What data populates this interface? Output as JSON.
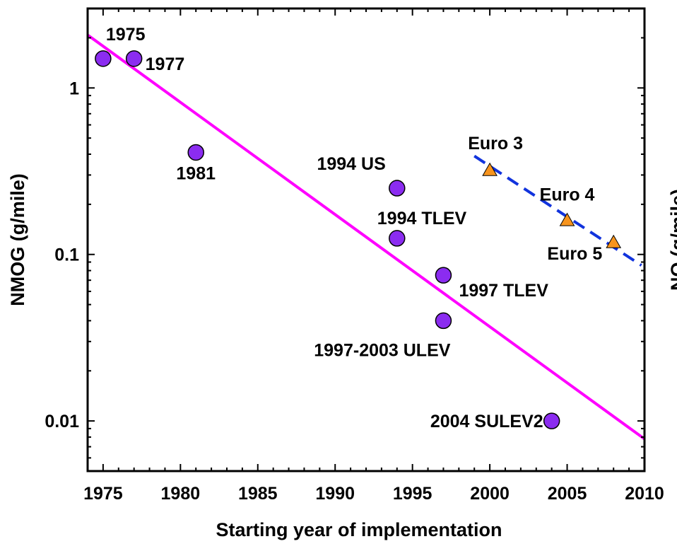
{
  "chart_data": {
    "type": "scatter",
    "xlabel": "Starting year of implementation",
    "ylabel": "NMOG (g/mile)",
    "right_ylabel_fragment": "NO (g/mile)",
    "xlim": [
      1974,
      2010
    ],
    "ylim": [
      0.005,
      3.0
    ],
    "y_scale": "log",
    "x_ticks": [
      1975,
      1980,
      1985,
      1990,
      1995,
      2000,
      2005,
      2010
    ],
    "y_ticks": [
      {
        "value": 0.01,
        "label": "0.01"
      },
      {
        "value": 0.1,
        "label": "0.1"
      },
      {
        "value": 1,
        "label": "1"
      }
    ],
    "grid": false,
    "colors": {
      "us_points": "#8b2cf0",
      "eu_points": "#f7941d",
      "us_trend": "#ff00ff",
      "eu_trend": "#1133dd"
    },
    "series": [
      {
        "marker": "circle",
        "points": [
          {
            "x": 1975,
            "y": 1.5,
            "label": "1975"
          },
          {
            "x": 1977,
            "y": 1.5,
            "label": "1977"
          },
          {
            "x": 1981,
            "y": 0.41,
            "label": "1981"
          },
          {
            "x": 1994,
            "y": 0.25,
            "label": "1994 US"
          },
          {
            "x": 1994,
            "y": 0.125,
            "label": "1994 TLEV"
          },
          {
            "x": 1997,
            "y": 0.075,
            "label": "1997 TLEV"
          },
          {
            "x": 1997,
            "y": 0.04,
            "label": "1997-2003 ULEV"
          },
          {
            "x": 2004,
            "y": 0.01,
            "label": "2004 SULEV2"
          }
        ]
      },
      {
        "marker": "triangle",
        "points": [
          {
            "x": 2000,
            "y": 0.32,
            "label": "Euro 3"
          },
          {
            "x": 2005,
            "y": 0.16,
            "label": "Euro 4"
          },
          {
            "x": 2008,
            "y": 0.118,
            "label": "Euro 5"
          }
        ]
      }
    ],
    "trendlines": [
      {
        "style": "solid",
        "from": {
          "x": 1974,
          "y": 2.08
        },
        "to": {
          "x": 2010,
          "y": 0.0078
        }
      },
      {
        "style": "dashed",
        "from": {
          "x": 1999,
          "y": 0.39
        },
        "to": {
          "x": 2009.8,
          "y": 0.086
        }
      }
    ]
  }
}
